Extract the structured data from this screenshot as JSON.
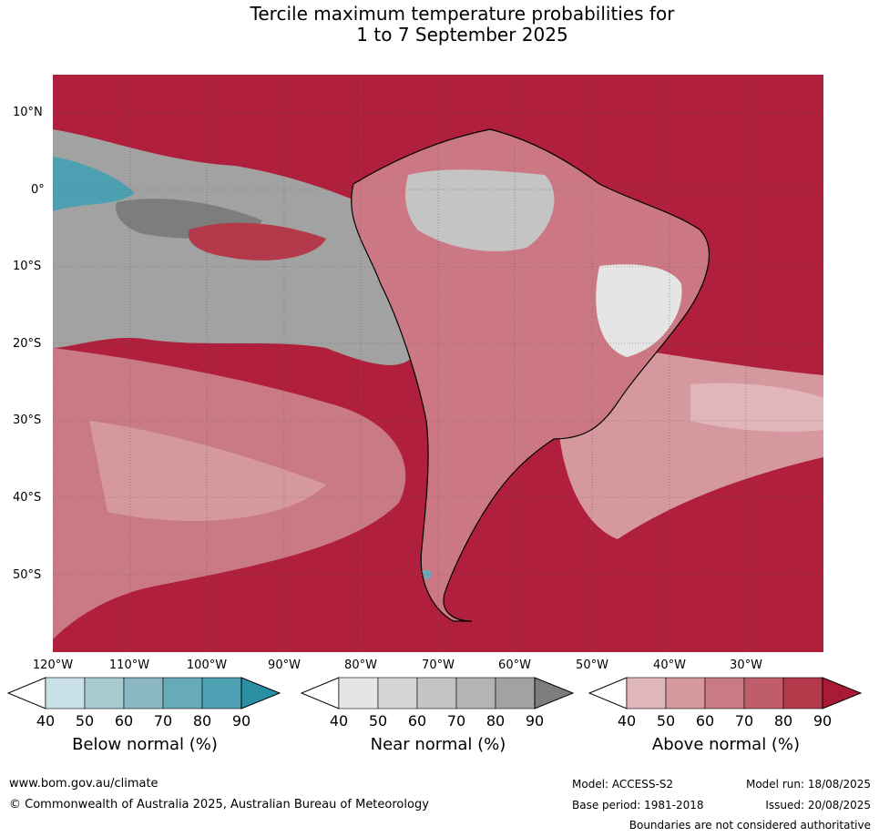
{
  "title_line1": "Tercile maximum temperature probabilities for",
  "title_line2": "1 to 7 September 2025",
  "lat_labels": [
    "10°N",
    "0°",
    "10°S",
    "20°S",
    "30°S",
    "40°S",
    "50°S"
  ],
  "lon_labels": [
    "120°W",
    "110°W",
    "100°W",
    "90°W",
    "80°W",
    "70°W",
    "60°W",
    "50°W",
    "40°W",
    "30°W"
  ],
  "colorbars": [
    {
      "label": "Below normal (%)",
      "ticks": [
        "40",
        "50",
        "60",
        "70",
        "80",
        "90"
      ],
      "colors": [
        "#ffffff",
        "#c8e0e6",
        "#a7cad0",
        "#8ab7c3",
        "#67abb9",
        "#4ca0b1",
        "#2a8fa3"
      ]
    },
    {
      "label": "Near normal (%)",
      "ticks": [
        "40",
        "50",
        "60",
        "70",
        "80",
        "90"
      ],
      "colors": [
        "#ffffff",
        "#e5e5e5",
        "#d6d6d6",
        "#c4c4c4",
        "#b4b4b4",
        "#a2a2a2",
        "#7d7d7d"
      ]
    },
    {
      "label": "Above normal (%)",
      "ticks": [
        "40",
        "50",
        "60",
        "70",
        "80",
        "90"
      ],
      "colors": [
        "#ffffff",
        "#e1b6bb",
        "#d5989f",
        "#ca7a84",
        "#bf5e6a",
        "#b4394a",
        "#a91a36"
      ]
    }
  ],
  "footer": {
    "website": "www.bom.gov.au/climate",
    "copyright": "© Commonwealth of Australia 2025, Australian Bureau of Meteorology",
    "model": "Model: ACCESS-S2",
    "base_period": "Base period: 1981-2018",
    "model_run": "Model run: 18/08/2025",
    "issued": "Issued: 20/08/2025",
    "disclaimer": "Boundaries are not considered authoritative"
  }
}
